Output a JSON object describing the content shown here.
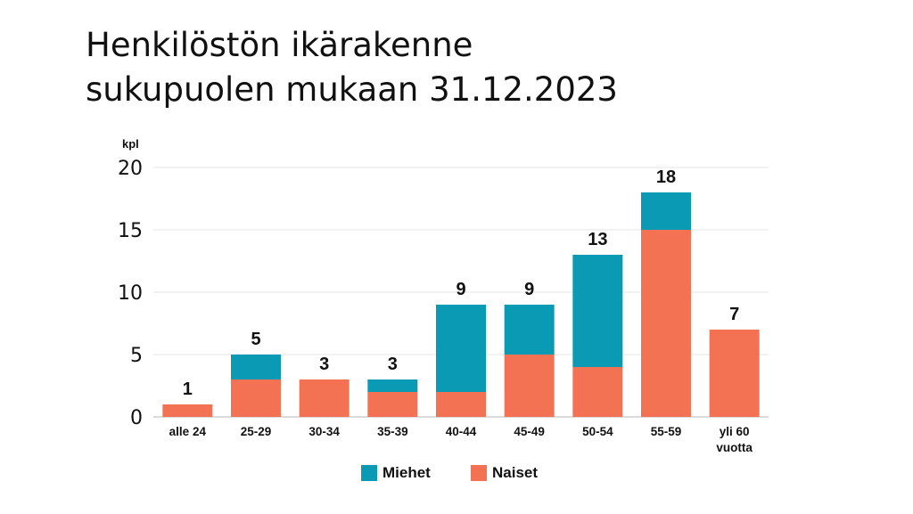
{
  "title_lines": [
    "Henkilöstön ikärakenne",
    "sukupuolen mukaan 31.12.2023"
  ],
  "chart_data": {
    "type": "bar",
    "stacked": true,
    "title": "Henkilöstön ikärakenne sukupuolen mukaan 31.12.2023",
    "ylabel": "kpl",
    "ylim": [
      0,
      20
    ],
    "yticks": [
      0,
      5,
      10,
      15,
      20
    ],
    "categories": [
      "alle 24",
      "25-29",
      "30-34",
      "35-39",
      "40-44",
      "45-49",
      "50-54",
      "55-59",
      "yli 60 vuotta"
    ],
    "series": [
      {
        "name": "Naiset",
        "color": "#f47254",
        "values": [
          1,
          3,
          3,
          2,
          2,
          5,
          4,
          15,
          7
        ]
      },
      {
        "name": "Miehet",
        "color": "#0b9ab4",
        "values": [
          0,
          2,
          0,
          1,
          7,
          4,
          9,
          3,
          0
        ]
      }
    ],
    "totals": [
      1,
      5,
      3,
      3,
      9,
      9,
      13,
      18,
      7
    ],
    "legend": [
      "Miehet",
      "Naiset"
    ],
    "legend_position": "bottom",
    "grid": true
  }
}
